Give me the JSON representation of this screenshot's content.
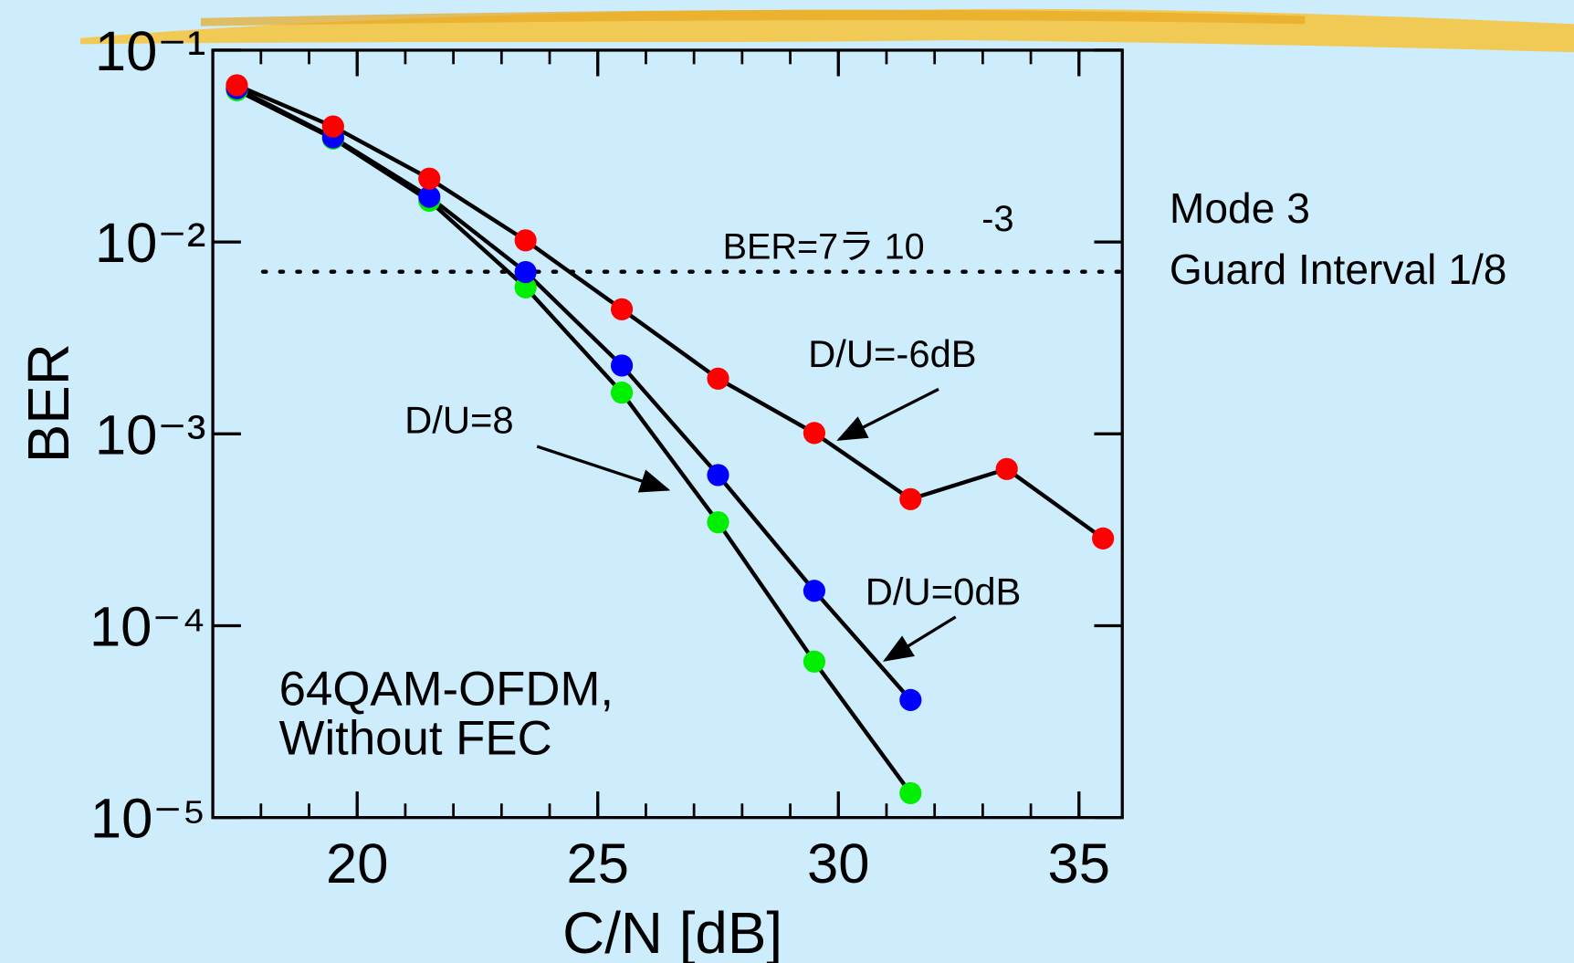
{
  "chart_data": {
    "type": "line",
    "xlabel": "C/N [dB]",
    "ylabel": "BER",
    "log_y": true,
    "xlim": [
      17,
      35.9
    ],
    "ylim": [
      1e-05,
      0.1
    ],
    "xticks": [
      20,
      25,
      30,
      35
    ],
    "xminor_ticks": [
      18,
      19,
      20,
      21,
      22,
      23,
      24,
      25,
      26,
      27,
      28,
      29,
      30,
      31,
      32,
      33,
      34,
      35
    ],
    "yticks": [
      {
        "value": 0.1,
        "label": "10⁻¹"
      },
      {
        "value": 0.01,
        "label": "10⁻²"
      },
      {
        "value": 0.001,
        "label": "10⁻³"
      },
      {
        "value": 0.0001,
        "label": "10⁻⁴"
      },
      {
        "value": 1e-05,
        "label": "10⁻⁵"
      }
    ],
    "x": [
      17.5,
      19.5,
      21.5,
      23.5,
      25.5,
      27.5,
      29.5,
      31.5,
      33.5,
      35.5
    ],
    "series": [
      {
        "name": "D/U=-6dB",
        "color": "#ff0000",
        "values": [
          0.0656,
          0.04,
          0.0214,
          0.0102,
          0.00446,
          0.00194,
          0.00101,
          0.000457,
          0.000656,
          0.000285
        ]
      },
      {
        "name": "D/U=0dB",
        "color": "#0000ff",
        "values": [
          0.0633,
          0.0351,
          0.0172,
          0.00697,
          0.00227,
          0.00061,
          0.000152,
          4.1e-05,
          null,
          null
        ]
      },
      {
        "name": "D/U=8",
        "color": "#00ee00",
        "values": [
          0.0618,
          0.0346,
          0.0164,
          0.0058,
          0.00164,
          0.000346,
          6.5e-05,
          1.34e-05,
          null,
          null
        ]
      }
    ],
    "reference_line": {
      "value": 0.007,
      "label": "BER=7ラ 10",
      "label_exponent": "-3"
    },
    "annotations": [
      "Mode 3",
      "Guard Interval 1/8",
      "64QAM-OFDM,",
      "Without FEC"
    ]
  }
}
